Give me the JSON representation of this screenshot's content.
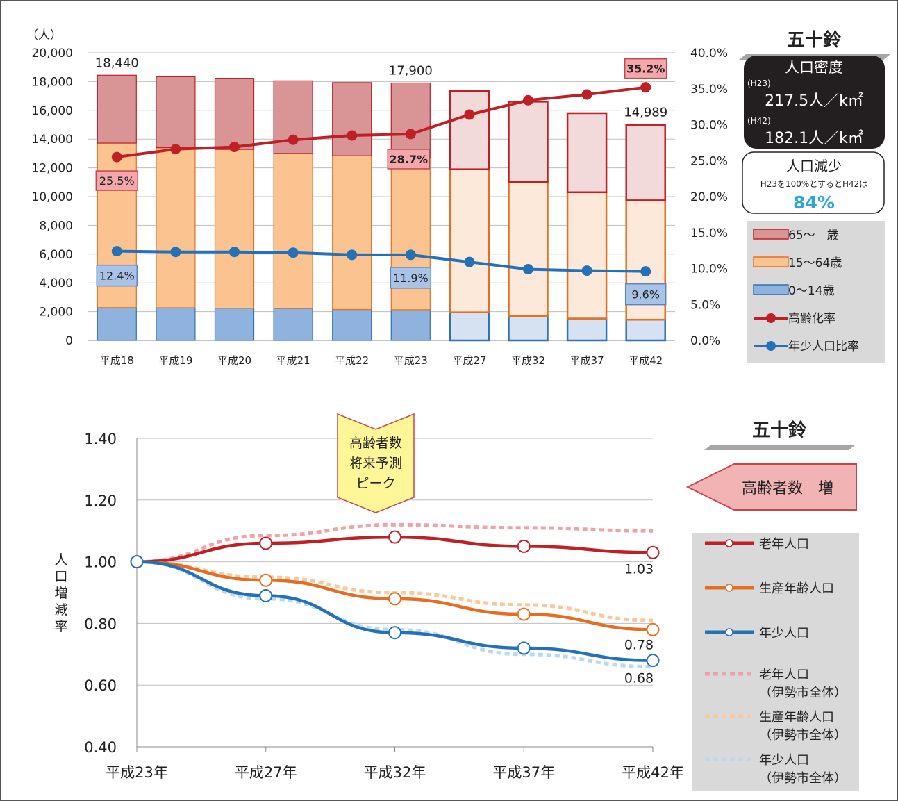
{
  "chart_data": [
    {
      "type": "bar",
      "y_unit_label": "（人）",
      "categories": [
        "平成18",
        "平成19",
        "平成20",
        "平成21",
        "平成22",
        "平成23",
        "平成27",
        "平成32",
        "平成37",
        "平成42"
      ],
      "series": [
        {
          "name": "0〜14歳",
          "values": [
            2280,
            2270,
            2230,
            2220,
            2150,
            2130,
            1950,
            1680,
            1520,
            1440
          ],
          "color": "#8fb2de",
          "future_color": "#d6e2f2",
          "edge": "#2f73b7"
        },
        {
          "name": "15〜64歳",
          "values": [
            11440,
            11130,
            11050,
            10780,
            10690,
            10590,
            9950,
            9330,
            8780,
            8300
          ],
          "color": "#fbc38f",
          "future_color": "#fde9d9",
          "edge": "#e46f24"
        },
        {
          "name": "65〜　歳",
          "values": [
            4720,
            4940,
            4950,
            5050,
            5090,
            5180,
            5450,
            5590,
            5500,
            5250
          ],
          "color": "#d99596",
          "future_color": "#f2d9da",
          "edge": "#bf2026"
        }
      ],
      "projected_from_index": 6,
      "total_labels": [
        {
          "index": 0,
          "text": "18,440"
        },
        {
          "index": 5,
          "text": "17,900"
        },
        {
          "index": 9,
          "text": "14,989"
        }
      ],
      "y_left": {
        "min": 0,
        "max": 20000,
        "step": 2000,
        "tick_labels": [
          "0",
          "2,000",
          "4,000",
          "6,000",
          "8,000",
          "10,000",
          "12,000",
          "14,000",
          "16,000",
          "18,000",
          "20,000"
        ]
      },
      "y_right": {
        "min": 0,
        "max": 40,
        "step": 5,
        "tick_labels": [
          "0.0%",
          "5.0%",
          "10.0%",
          "15.0%",
          "20.0%",
          "25.0%",
          "30.0%",
          "35.0%",
          "40.0%"
        ]
      },
      "lines": [
        {
          "name": "高齢化率",
          "values": [
            25.5,
            26.6,
            26.9,
            27.9,
            28.5,
            28.7,
            31.4,
            33.4,
            34.2,
            35.2
          ],
          "color": "#bf2026",
          "labels": [
            {
              "index": 0,
              "text": "25.5%",
              "bold": false
            },
            {
              "index": 5,
              "text": "28.7%",
              "bold": true
            },
            {
              "index": 9,
              "text": "35.2%",
              "bold": true
            }
          ]
        },
        {
          "name": "年少人口比率",
          "values": [
            12.4,
            12.3,
            12.3,
            12.2,
            11.9,
            11.9,
            10.9,
            9.9,
            9.7,
            9.6
          ],
          "color": "#2471b8",
          "labels": [
            {
              "index": 0,
              "text": "12.4%"
            },
            {
              "index": 5,
              "text": "11.9%"
            },
            {
              "index": 9,
              "text": "9.6%"
            }
          ]
        }
      ],
      "legend": [
        "65〜　歳",
        "15〜64歳",
        "0〜14歳",
        "高齢化率",
        "年少人口比率"
      ],
      "legend_placement": "right",
      "grid": true
    },
    {
      "type": "line",
      "categories": [
        "平成23年",
        "平成27年",
        "平成32年",
        "平成37年",
        "平成42年"
      ],
      "ylabel": "人口増減率",
      "y_axis": {
        "min": 0.4,
        "max": 1.4,
        "step": 0.2,
        "tick_labels": [
          "0.40",
          "0.60",
          "0.80",
          "1.00",
          "1.20",
          "1.40"
        ]
      },
      "series": [
        {
          "name": "老年人口",
          "values": [
            1.0,
            1.06,
            1.08,
            1.05,
            1.03
          ],
          "color": "#bf2026",
          "dashed": false
        },
        {
          "name": "生産年齢人口",
          "values": [
            1.0,
            0.94,
            0.88,
            0.83,
            0.78
          ],
          "color": "#e46f24",
          "dashed": false
        },
        {
          "name": "年少人口",
          "values": [
            1.0,
            0.89,
            0.77,
            0.72,
            0.68
          ],
          "color": "#2471b8",
          "dashed": false
        },
        {
          "name": "老年人口",
          "name_sub": "（伊勢市全体）",
          "values": [
            1.0,
            1.085,
            1.12,
            1.11,
            1.1
          ],
          "color": "#f0a3a7",
          "dashed": true
        },
        {
          "name": "生産年齢人口",
          "name_sub": "（伊勢市全体）",
          "values": [
            1.0,
            0.95,
            0.9,
            0.86,
            0.81
          ],
          "color": "#f9c99e",
          "dashed": true
        },
        {
          "name": "年少人口",
          "name_sub": "（伊勢市全体）",
          "values": [
            1.0,
            0.88,
            0.78,
            0.7,
            0.66
          ],
          "color": "#b9d8f2",
          "dashed": true
        }
      ],
      "end_labels": [
        "1.03",
        "0.78",
        "0.68"
      ],
      "grid": true,
      "legend_placement": "right"
    }
  ],
  "side": {
    "district_name": "五十鈴",
    "density_title": "人口密度",
    "h23_tag": "(H23)",
    "h23_value": "217.5人／k㎡",
    "h42_tag": "(H42)",
    "h42_value": "182.1人／k㎡",
    "decline_title": "人口減少",
    "decline_note": "H23を100%とするとH42は",
    "decline_value": "84%",
    "decline_color": "#2ca5dc",
    "arrow_label": "高齢者数　増",
    "peak_label": [
      "高齢者数",
      "将来予測",
      "ピーク"
    ]
  }
}
